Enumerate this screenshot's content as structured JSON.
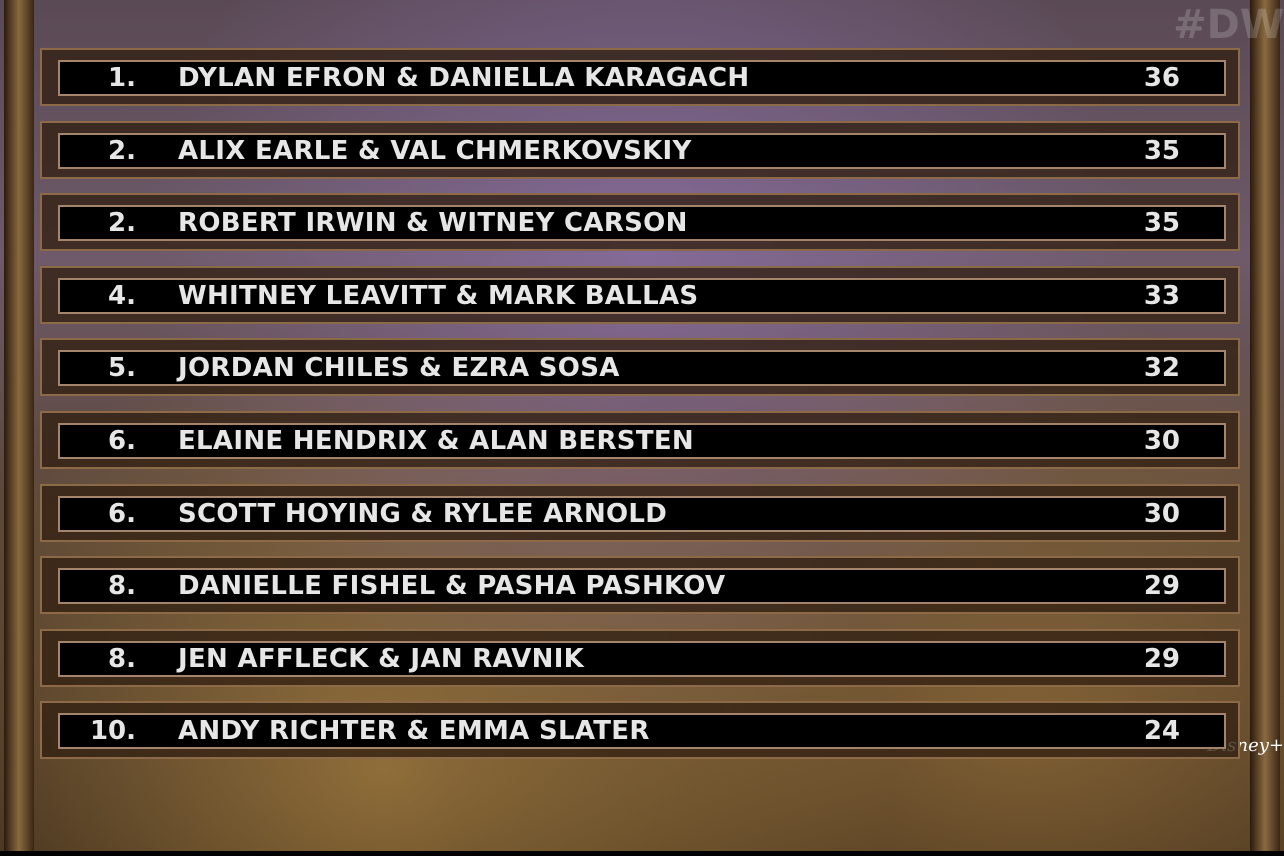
{
  "watermark": {
    "hashtag": "#DW",
    "network_logo": "Disney+"
  },
  "leaderboard": [
    {
      "rank": "1.",
      "couple": "DYLAN EFRON & DANIELLA KARAGACH",
      "score": "36"
    },
    {
      "rank": "2.",
      "couple": "ALIX EARLE & VAL CHMERKOVSKIY",
      "score": "35"
    },
    {
      "rank": "2.",
      "couple": "ROBERT IRWIN & WITNEY CARSON",
      "score": "35"
    },
    {
      "rank": "4.",
      "couple": "WHITNEY LEAVITT & MARK BALLAS",
      "score": "33"
    },
    {
      "rank": "5.",
      "couple": "JORDAN CHILES & EZRA SOSA",
      "score": "32"
    },
    {
      "rank": "6.",
      "couple": "ELAINE HENDRIX & ALAN BERSTEN",
      "score": "30"
    },
    {
      "rank": "6.",
      "couple": "SCOTT HOYING & RYLEE ARNOLD",
      "score": "30"
    },
    {
      "rank": "8.",
      "couple": "DANIELLE FISHEL & PASHA PASHKOV",
      "score": "29"
    },
    {
      "rank": "8.",
      "couple": "JEN AFFLECK & JAN RAVNIK",
      "score": "29"
    },
    {
      "rank": "10.",
      "couple": "ANDY RICHTER & EMMA SLATER",
      "score": "24"
    }
  ]
}
